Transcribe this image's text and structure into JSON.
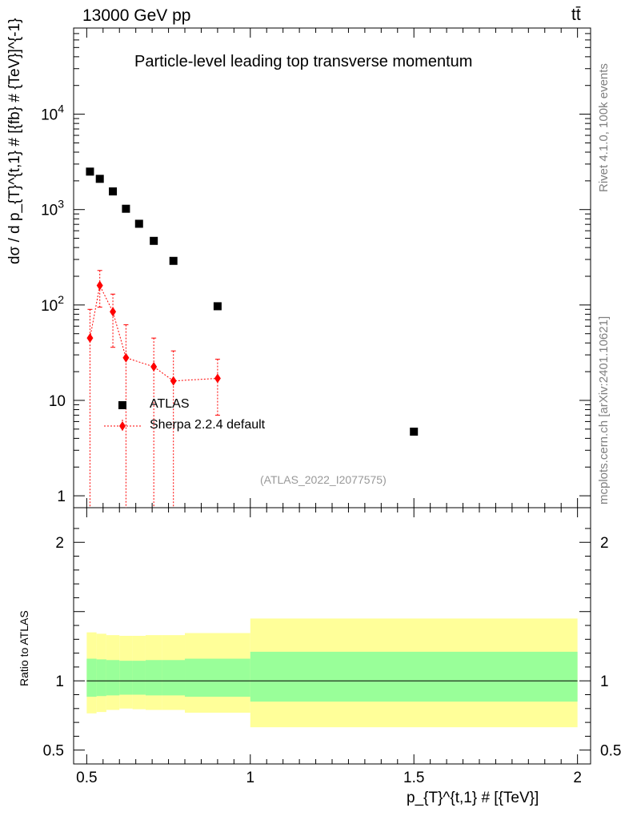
{
  "header": {
    "energy_label": "13000 GeV pp",
    "process_label": "tt̄"
  },
  "side_labels": {
    "rivet": "Rivet 4.1.0,  100k events",
    "mcplots": "mcplots.cern.ch [arXiv:2401.10621]"
  },
  "chart_data": [
    {
      "type": "scatter",
      "title": "Particle-level leading top transverse momentum",
      "analysis_id": "(ATLAS_2022_I2077575)",
      "ylabel": "dσ / d p_{T}^{t,1} # [{fb} # {TeV}]^{-1}",
      "yscale": "log",
      "ylim": [
        0.75,
        80000
      ],
      "xlim": [
        0.46,
        2.04
      ],
      "y_tick_labels": [
        "1",
        "10",
        "10^2",
        "10^3",
        "10^4"
      ],
      "legend": [
        "ATLAS",
        "Sherpa 2.2.4 default"
      ],
      "legend_position": "middle-left",
      "series": [
        {
          "name": "ATLAS",
          "marker": "square",
          "color": "#000000",
          "x": [
            0.51,
            0.54,
            0.58,
            0.62,
            0.66,
            0.705,
            0.765,
            0.9,
            1.5
          ],
          "y": [
            2500,
            2100,
            1550,
            1020,
            710,
            470,
            290,
            97,
            4.7
          ]
        },
        {
          "name": "Sherpa 2.2.4 default",
          "marker": "diamond",
          "color": "#ff0000",
          "x": [
            0.51,
            0.54,
            0.58,
            0.62,
            0.705,
            0.765,
            0.9
          ],
          "y": [
            45,
            160,
            85,
            28,
            22.5,
            16,
            17
          ],
          "y_low": [
            0.1,
            95,
            36,
            0.1,
            0.1,
            0.1,
            7
          ],
          "y_high": [
            90,
            230,
            130,
            62,
            45,
            33,
            27
          ]
        }
      ]
    },
    {
      "type": "area",
      "ylabel": "Ratio to ATLAS",
      "xlabel": "p_{T}^{t,1} # [{TeV}]",
      "ylim": [
        0.4,
        2.25
      ],
      "y_tick_labels": [
        "0.5",
        "1",
        "2"
      ],
      "x_tick_labels": [
        "0.5",
        "1",
        "1.5",
        "2"
      ],
      "reference_line": 1,
      "bins": [
        {
          "x0": 0.5,
          "x1": 0.53,
          "inner": [
            0.885,
            1.16
          ],
          "outer": [
            0.765,
            1.35
          ]
        },
        {
          "x0": 0.53,
          "x1": 0.56,
          "inner": [
            0.89,
            1.155
          ],
          "outer": [
            0.775,
            1.34
          ]
        },
        {
          "x0": 0.56,
          "x1": 0.6,
          "inner": [
            0.895,
            1.15
          ],
          "outer": [
            0.79,
            1.33
          ]
        },
        {
          "x0": 0.6,
          "x1": 0.64,
          "inner": [
            0.9,
            1.145
          ],
          "outer": [
            0.8,
            1.325
          ]
        },
        {
          "x0": 0.64,
          "x1": 0.68,
          "inner": [
            0.9,
            1.145
          ],
          "outer": [
            0.795,
            1.325
          ]
        },
        {
          "x0": 0.68,
          "x1": 0.73,
          "inner": [
            0.895,
            1.15
          ],
          "outer": [
            0.79,
            1.33
          ]
        },
        {
          "x0": 0.73,
          "x1": 0.8,
          "inner": [
            0.895,
            1.15
          ],
          "outer": [
            0.79,
            1.33
          ]
        },
        {
          "x0": 0.8,
          "x1": 1.0,
          "inner": [
            0.885,
            1.16
          ],
          "outer": [
            0.77,
            1.345
          ]
        },
        {
          "x0": 1.0,
          "x1": 2.0,
          "inner": [
            0.85,
            1.21
          ],
          "outer": [
            0.665,
            1.45
          ]
        }
      ],
      "colors": {
        "inner": "#99ff99",
        "outer": "#ffff99"
      }
    }
  ]
}
